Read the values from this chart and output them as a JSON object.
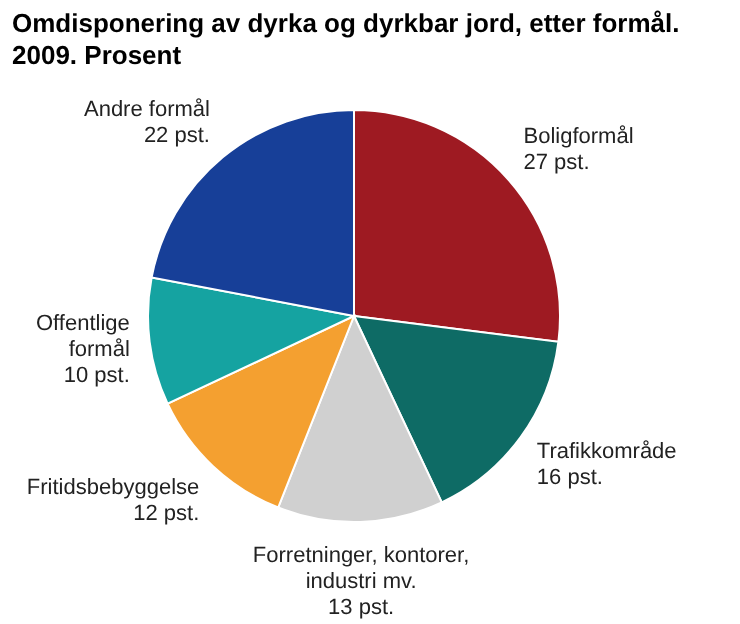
{
  "chart_data": {
    "type": "pie",
    "title": "Omdisponering av dyrka og dyrkbar jord, etter formål.",
    "subtitle": "2009. Prosent",
    "categories": [
      "Boligformål",
      "Trafikkområde",
      "Forretninger, kontorer, industri mv.",
      "Fritidsbebyggelse",
      "Offentlige formål",
      "Andre formål"
    ],
    "values": [
      27,
      16,
      13,
      12,
      10,
      22
    ],
    "colors": [
      "#9e1a22",
      "#0e6b65",
      "#d0d0d0",
      "#f4a030",
      "#15a3a1",
      "#173f98"
    ],
    "value_labels": [
      "27 pst.",
      "16 pst.",
      "13 pst.",
      "12 pst.",
      "10 pst.",
      "22 pst."
    ]
  }
}
